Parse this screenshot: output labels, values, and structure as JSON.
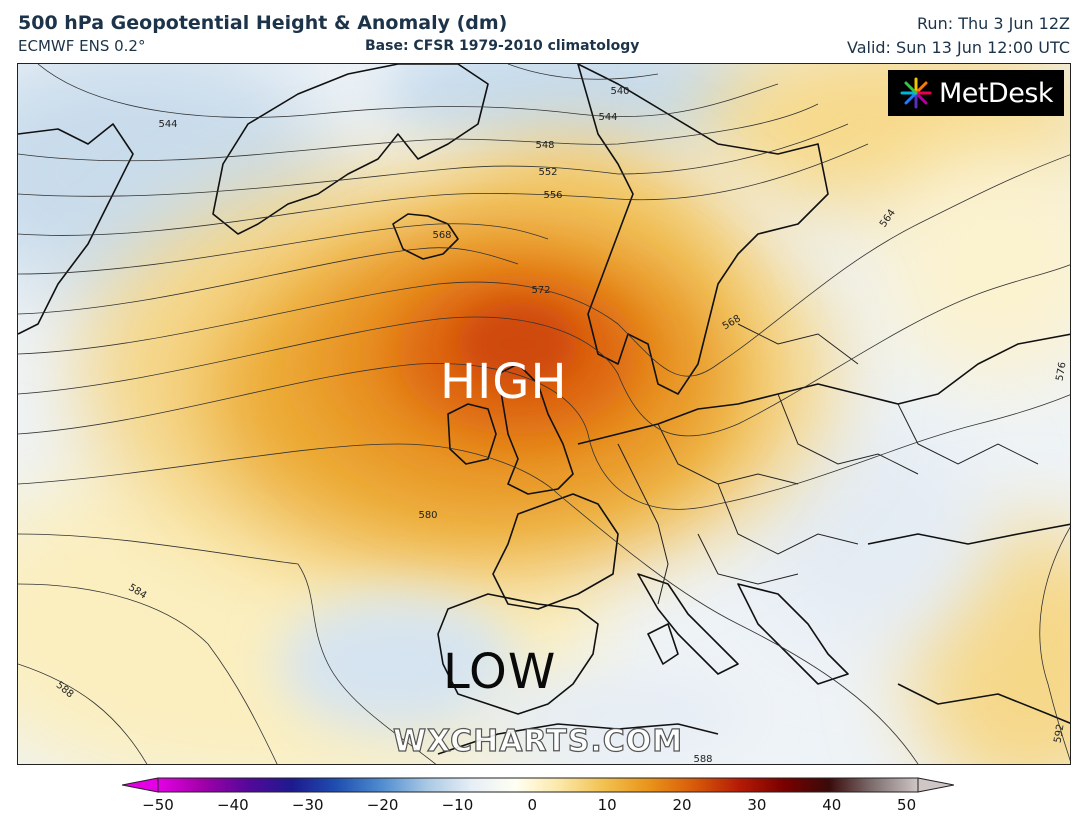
{
  "header": {
    "title": "500 hPa Geopotential Height & Anomaly (dm)",
    "model": "ECMWF ENS 0.2°",
    "base": "Base: CFSR 1979-2010 climatology",
    "run": "Run: Thu 3 Jun 12Z",
    "valid": "Valid: Sun 13 Jun 12:00 UTC"
  },
  "logo": {
    "text": "MetDesk",
    "icon": "pinwheel-icon"
  },
  "map": {
    "high_label": "HIGH",
    "low_label": "LOW",
    "watermark": "WXCHARTS.COM",
    "contours": [
      {
        "label": "540"
      },
      {
        "label": "544"
      },
      {
        "label": "544"
      },
      {
        "label": "548"
      },
      {
        "label": "552"
      },
      {
        "label": "556"
      },
      {
        "label": "568"
      },
      {
        "label": "572"
      },
      {
        "label": "580"
      },
      {
        "label": "584"
      },
      {
        "label": "588"
      },
      {
        "label": "588"
      },
      {
        "label": "564"
      },
      {
        "label": "568"
      },
      {
        "label": "576"
      },
      {
        "label": "592"
      }
    ]
  },
  "colorbar": {
    "min": -50,
    "max": 50,
    "ticks": [
      "−50",
      "−40",
      "−30",
      "−20",
      "−10",
      "0",
      "10",
      "20",
      "30",
      "40",
      "50"
    ],
    "colors": [
      "#e400e4",
      "#a000a8",
      "#55089a",
      "#1d1a8e",
      "#1f4fb0",
      "#4f8cd0",
      "#a8c8e4",
      "#e6eef6",
      "#fffff2",
      "#fbe7a6",
      "#f1c04e",
      "#e99319",
      "#d75a0a",
      "#b51b05",
      "#7a0000",
      "#3a0a0a",
      "#807070",
      "#cfc6c6"
    ]
  }
}
